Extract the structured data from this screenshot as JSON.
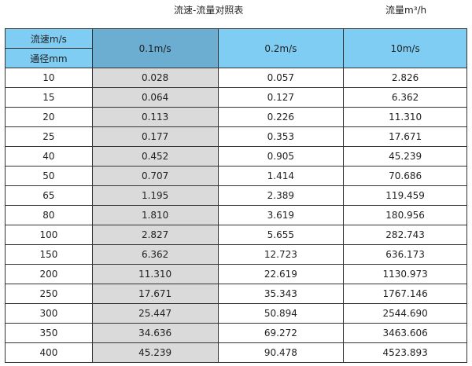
{
  "title": "流速-流量对照表",
  "unit_label": "流量m³/h",
  "header": {
    "velocity_label": "流速m/s",
    "diameter_label": "通径mm",
    "columns": [
      "0.1m/s",
      "0.2m/s",
      "10m/s"
    ]
  },
  "colors": {
    "header": "#7fcdf3",
    "header_selected": "#6caed2",
    "highlight_column": "#dadada"
  },
  "rows": [
    [
      "10",
      "0.028",
      "0.057",
      "2.826"
    ],
    [
      "15",
      "0.064",
      "0.127",
      "6.362"
    ],
    [
      "20",
      "0.113",
      "0.226",
      "11.310"
    ],
    [
      "25",
      "0.177",
      "0.353",
      "17.671"
    ],
    [
      "40",
      "0.452",
      "0.905",
      "45.239"
    ],
    [
      "50",
      "0.707",
      "1.414",
      "70.686"
    ],
    [
      "65",
      "1.195",
      "2.389",
      "119.459"
    ],
    [
      "80",
      "1.810",
      "3.619",
      "180.956"
    ],
    [
      "100",
      "2.827",
      "5.655",
      "282.743"
    ],
    [
      "150",
      "6.362",
      "12.723",
      "636.173"
    ],
    [
      "200",
      "11.310",
      "22.619",
      "1130.973"
    ],
    [
      "250",
      "17.671",
      "35.343",
      "1767.146"
    ],
    [
      "300",
      "25.447",
      "50.894",
      "2544.690"
    ],
    [
      "350",
      "34.636",
      "69.272",
      "3463.606"
    ],
    [
      "400",
      "45.239",
      "90.478",
      "4523.893"
    ]
  ]
}
